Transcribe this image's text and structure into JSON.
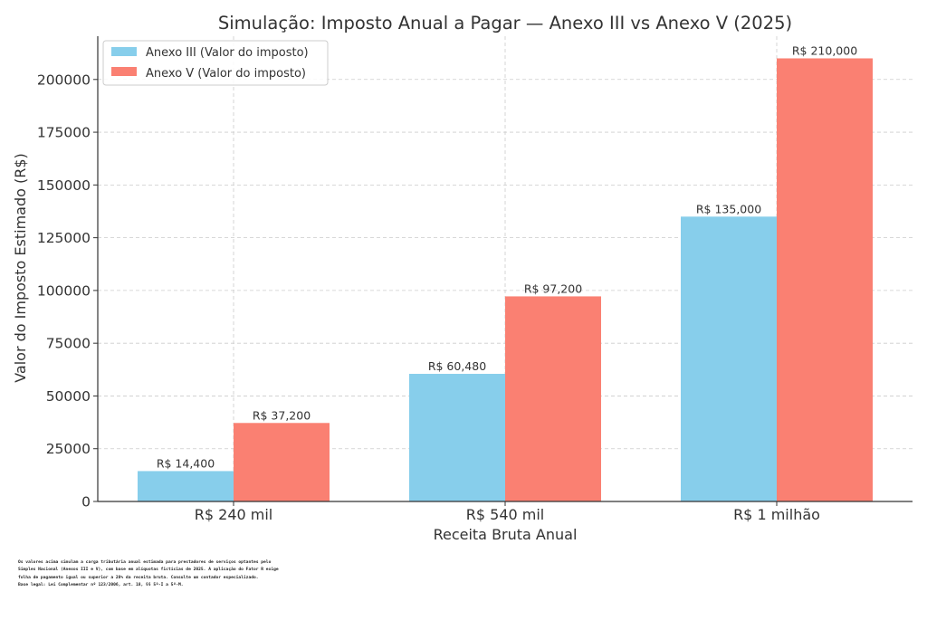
{
  "chart_data": {
    "type": "bar",
    "title": "Simulação: Imposto Anual a Pagar — Anexo III vs Anexo V (2025)",
    "xlabel": "Receita Bruta Anual",
    "ylabel": "Valor do Imposto Estimado (R$)",
    "categories": [
      "R$ 240 mil",
      "R$ 540 mil",
      "R$ 1 milhão"
    ],
    "series": [
      {
        "name": "Anexo III (Valor do imposto)",
        "color": "#87CEEB",
        "values": [
          14400,
          60480,
          135000
        ],
        "labels": [
          "R$ 14,400",
          "R$ 60,480",
          "R$ 135,000"
        ]
      },
      {
        "name": "Anexo V (Valor do imposto)",
        "color": "#FA8072",
        "values": [
          37200,
          97200,
          210000
        ],
        "labels": [
          "R$ 37,200",
          "R$ 97,200",
          "R$ 210,000"
        ]
      }
    ],
    "ylim": [
      0,
      220500
    ],
    "yticks": [
      0,
      25000,
      50000,
      75000,
      100000,
      125000,
      150000,
      175000,
      200000
    ],
    "grid": true,
    "legend": "top-left"
  },
  "footnote": {
    "lines": [
      "Os valores acima simulam a carga tributária anual estimada para prestadores de serviços optantes pelo",
      "Simples Nacional (Anexos III e V), com base em alíquotas fictícias de 2025. A aplicação do Fator R exige",
      "folha de pagamento igual ou superior a 28% da receita bruta. Consulte um contador especializado.",
      "Base legal: Lei Complementar nº 123/2006, art. 18, §§ 5º-I a 5º-M."
    ]
  }
}
